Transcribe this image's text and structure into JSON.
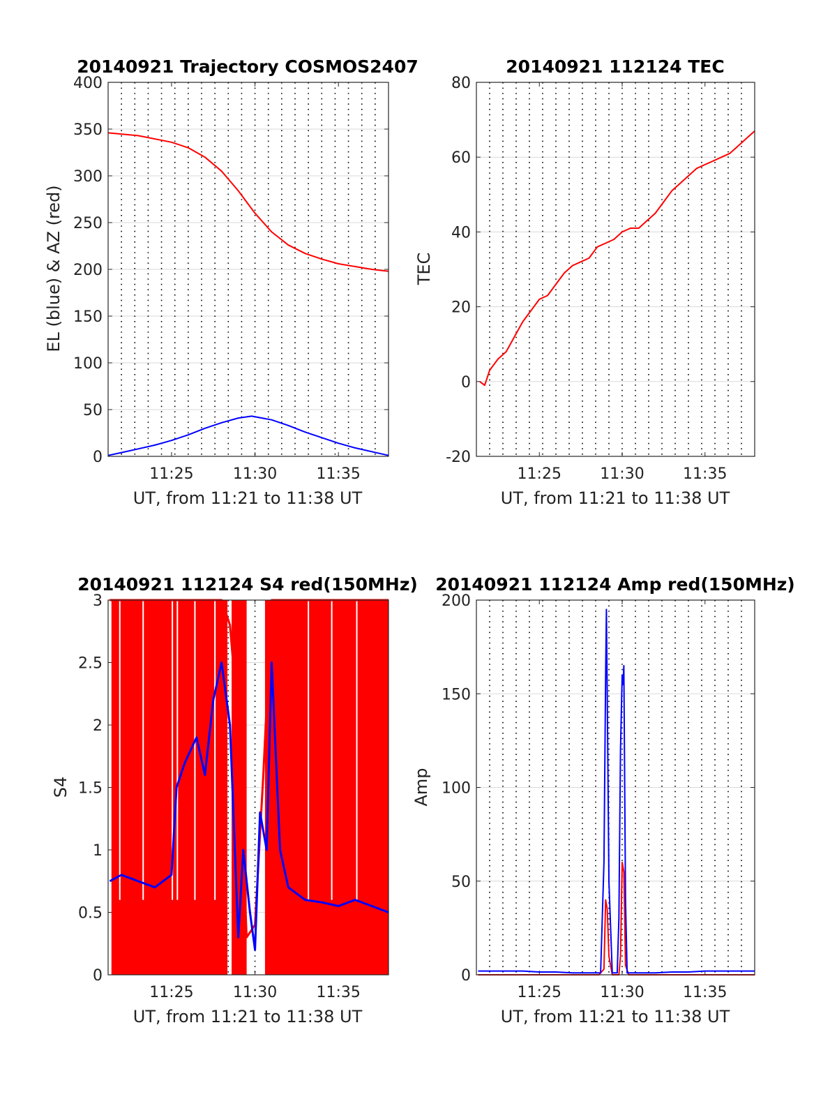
{
  "figure": {
    "colors": {
      "red": "#ff0000",
      "blue": "#0000ff",
      "grid": "#d9d9d9",
      "vline": "#000000",
      "frame": "#262626"
    }
  },
  "chart_data": [
    {
      "type": "line",
      "title": "20140921 Trajectory COSMOS2407",
      "xlabel": "UT, from 11:21 to 11:38 UT",
      "ylabel": "EL (blue) & AZ (red)",
      "xlim": [
        21.2,
        38.0
      ],
      "ylim": [
        0,
        400
      ],
      "yticks": [
        0,
        50,
        100,
        150,
        200,
        250,
        300,
        350,
        400
      ],
      "xticks": [
        25,
        30,
        35
      ],
      "xtick_labels": [
        "11:25",
        "11:30",
        "11:35"
      ],
      "grid": true,
      "x_unit": "minutes after 11:00 UT",
      "series": [
        {
          "color": "red",
          "x": [
            21.2,
            23,
            25,
            26,
            27,
            28,
            29,
            30,
            31,
            32,
            33,
            34,
            35,
            36,
            37,
            38
          ],
          "y": [
            346,
            343,
            336,
            330,
            320,
            305,
            284,
            260,
            240,
            226,
            217,
            211,
            206,
            203,
            200,
            198
          ]
        },
        {
          "color": "blue",
          "x": [
            21.2,
            22,
            23,
            24,
            25,
            26,
            27,
            28,
            29,
            29.8,
            31,
            32,
            33,
            34,
            35,
            36,
            37,
            38
          ],
          "y": [
            1,
            4,
            8,
            12,
            17,
            23,
            30,
            36,
            41,
            43,
            39,
            33,
            26,
            20,
            14,
            9,
            5,
            1
          ]
        }
      ]
    },
    {
      "type": "line",
      "title": "20140921 112124 TEC",
      "xlabel": "UT, from 11:21 to 11:38 UT",
      "ylabel": "TEC",
      "xlim": [
        21.2,
        38.0
      ],
      "ylim": [
        -20,
        80
      ],
      "yticks": [
        -20,
        0,
        20,
        40,
        60,
        80
      ],
      "xticks": [
        25,
        30,
        35
      ],
      "xtick_labels": [
        "11:25",
        "11:30",
        "11:35"
      ],
      "grid": true,
      "x_unit": "minutes after 11:00 UT",
      "series": [
        {
          "color": "red",
          "x": [
            21.4,
            21.7,
            22.0,
            22.5,
            23.0,
            23.5,
            24.0,
            24.5,
            25.0,
            25.5,
            26.0,
            26.5,
            27.0,
            27.5,
            28.0,
            28.5,
            29.0,
            29.5,
            30.0,
            30.5,
            31.0,
            31.5,
            32.0,
            32.5,
            33.0,
            33.5,
            34.0,
            34.5,
            35.0,
            35.5,
            36.0,
            36.5,
            37.0,
            37.5,
            38.0
          ],
          "y": [
            0,
            -1,
            3,
            6,
            8,
            12,
            16,
            19,
            22,
            23,
            26,
            29,
            31,
            32,
            33,
            36,
            37,
            38,
            40,
            41,
            41,
            43,
            45,
            48,
            51,
            53,
            55,
            57,
            58,
            59,
            60,
            61,
            63,
            65,
            67
          ]
        }
      ]
    },
    {
      "type": "line",
      "title": "20140921 112124 S4 red(150MHz)",
      "xlabel": "UT, from 11:21 to 11:38 UT",
      "ylabel": "S4",
      "xlim": [
        21.2,
        38.0
      ],
      "ylim": [
        0,
        3
      ],
      "yticks": [
        0,
        0.5,
        1,
        1.5,
        2,
        2.5,
        3
      ],
      "ytick_labels": [
        "0",
        "0.5",
        "1",
        "1.5",
        "2",
        "2.5",
        "3"
      ],
      "xticks": [
        25,
        30,
        35
      ],
      "xtick_labels": [
        "11:25",
        "11:30",
        "11:35"
      ],
      "grid": true,
      "x_unit": "minutes after 11:00 UT",
      "series": [
        {
          "color": "red",
          "x": [
            21.3,
            22.5,
            23.5,
            24.5,
            25.2,
            26.0,
            27.0,
            28.0,
            28.5,
            29.0,
            29.5,
            30.0,
            30.5,
            31.0,
            31.5,
            32.0,
            33.0,
            34.0,
            35.0,
            36.0,
            37.0,
            38.0
          ],
          "y": [
            3.0,
            3.0,
            3.0,
            3.0,
            3.0,
            3.0,
            3.0,
            3.0,
            2.8,
            2.0,
            0.3,
            0.4,
            1.6,
            3.0,
            3.0,
            3.0,
            3.0,
            3.0,
            3.0,
            3.0,
            3.0,
            3.0
          ]
        },
        {
          "color": "blue",
          "x": [
            21.3,
            22.0,
            23.0,
            24.0,
            25.0,
            25.3,
            25.8,
            26.5,
            27.0,
            27.5,
            28.0,
            28.5,
            29.0,
            29.3,
            29.7,
            30.0,
            30.3,
            30.7,
            31.0,
            31.5,
            32.0,
            32.5,
            33.0,
            34.0,
            35.0,
            36.0,
            37.0,
            38.0
          ],
          "y": [
            0.75,
            0.8,
            0.75,
            0.7,
            0.8,
            1.5,
            1.7,
            1.9,
            1.6,
            2.2,
            2.5,
            2.0,
            0.3,
            1.0,
            0.5,
            0.2,
            1.3,
            1.0,
            2.5,
            1.0,
            0.7,
            0.65,
            0.6,
            0.58,
            0.55,
            0.6,
            0.55,
            0.5
          ]
        }
      ]
    },
    {
      "type": "line",
      "title": "20140921 112124 Amp red(150MHz)",
      "xlabel": "UT, from 11:21 to 11:38 UT",
      "ylabel": "Amp",
      "xlim": [
        21.2,
        38.0
      ],
      "ylim": [
        0,
        200
      ],
      "yticks": [
        0,
        50,
        100,
        150,
        200
      ],
      "xticks": [
        25,
        30,
        35
      ],
      "xtick_labels": [
        "11:25",
        "11:30",
        "11:35"
      ],
      "grid": true,
      "x_unit": "minutes after 11:00 UT",
      "series": [
        {
          "color": "red",
          "x": [
            21.3,
            28.6,
            28.9,
            29.0,
            29.1,
            29.2,
            29.4,
            29.8,
            29.9,
            30.0,
            30.1,
            30.2,
            30.4,
            38.0
          ],
          "y": [
            0,
            0,
            3,
            40,
            35,
            10,
            0,
            0,
            10,
            60,
            55,
            5,
            0,
            0
          ]
        },
        {
          "color": "blue",
          "x": [
            21.3,
            22.0,
            23.0,
            24.0,
            25.0,
            26.0,
            27.0,
            28.0,
            28.7,
            28.9,
            29.0,
            29.05,
            29.1,
            29.2,
            29.4,
            29.7,
            29.8,
            29.9,
            30.0,
            30.05,
            30.1,
            30.2,
            30.3,
            30.5,
            31.0,
            32.0,
            33.0,
            34.0,
            35.0,
            36.0,
            37.0,
            38.0
          ],
          "y": [
            2,
            2,
            2,
            2,
            1.5,
            1.5,
            1,
            1,
            1,
            60,
            160,
            195,
            150,
            50,
            1,
            1,
            30,
            120,
            160,
            155,
            165,
            40,
            1,
            1,
            1,
            1,
            1.5,
            1.5,
            2,
            2,
            2,
            2
          ]
        }
      ]
    }
  ]
}
